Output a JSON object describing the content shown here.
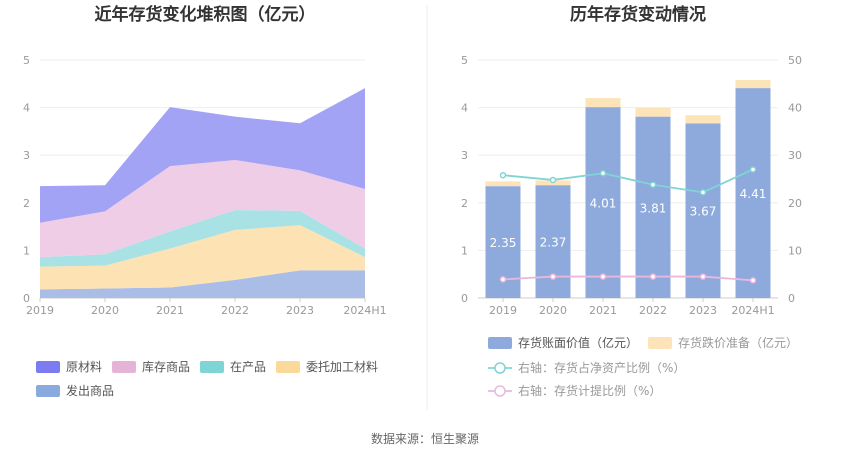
{
  "source_text": "数据来源：恒生聚源",
  "chart_data": [
    {
      "type": "area",
      "stacked": true,
      "title": "近年存货变化堆积图（亿元）",
      "categories": [
        "2019",
        "2020",
        "2021",
        "2022",
        "2023",
        "2024H1"
      ],
      "ylim": [
        0,
        5
      ],
      "yticks": [
        "0",
        "1",
        "2",
        "3",
        "4",
        "5"
      ],
      "grid": true,
      "legend_position": "bottom",
      "series": [
        {
          "name": "发出商品",
          "color": "#a9bde6",
          "values": [
            0.18,
            0.2,
            0.22,
            0.38,
            0.58,
            0.58
          ]
        },
        {
          "name": "委托加工材料",
          "color": "#fde2b4",
          "values": [
            0.48,
            0.48,
            0.82,
            1.05,
            0.95,
            0.28
          ]
        },
        {
          "name": "在产品",
          "color": "#a8e2e4",
          "values": [
            0.2,
            0.24,
            0.36,
            0.42,
            0.3,
            0.18
          ]
        },
        {
          "name": "库存商品",
          "color": "#f0cde6",
          "values": [
            0.72,
            0.9,
            1.37,
            1.05,
            0.85,
            1.25
          ]
        },
        {
          "name": "原材料",
          "color": "#a3a3f5",
          "values": [
            0.77,
            0.55,
            1.24,
            0.91,
            0.99,
            2.12
          ]
        }
      ],
      "legend_colors": [
        "#7b7bf2",
        "#e5b3d6",
        "#7fd4d6",
        "#fcd89a",
        "#8aaadf"
      ],
      "legend_order": [
        "原材料",
        "库存商品",
        "在产品",
        "委托加工材料",
        "发出商品"
      ]
    },
    {
      "type": "bar",
      "stacked": true,
      "title": "历年存货变动情况",
      "categories": [
        "2019",
        "2020",
        "2021",
        "2022",
        "2023",
        "2024H1"
      ],
      "ylim": [
        0,
        5
      ],
      "yticks": [
        "0",
        "1",
        "2",
        "3",
        "4",
        "5"
      ],
      "y2lim": [
        0,
        50
      ],
      "y2ticks": [
        "0",
        "10",
        "20",
        "30",
        "40",
        "50"
      ],
      "grid": true,
      "legend_position": "bottom",
      "series": [
        {
          "name": "存货账面价值（亿元）",
          "color": "#8eaadc",
          "values": [
            2.35,
            2.37,
            4.01,
            3.81,
            3.67,
            4.41
          ],
          "labels": [
            "2.35",
            "2.37",
            "4.01",
            "3.81",
            "3.67",
            "4.41"
          ]
        },
        {
          "name": "存货跌价准备（亿元）",
          "color": "#fde3b8",
          "values": [
            0.1,
            0.1,
            0.19,
            0.19,
            0.17,
            0.17
          ]
        }
      ],
      "line_series": [
        {
          "name": "右轴：存货占净资产比例（%）",
          "color": "#7fd4d6",
          "axis": "right",
          "values": [
            25.8,
            24.8,
            26.2,
            23.8,
            22.2,
            27.0
          ]
        },
        {
          "name": "右轴：存货计提比例（%）",
          "color": "#eab8dc",
          "axis": "right",
          "values": [
            3.9,
            4.5,
            4.5,
            4.5,
            4.5,
            3.7
          ]
        }
      ]
    }
  ]
}
